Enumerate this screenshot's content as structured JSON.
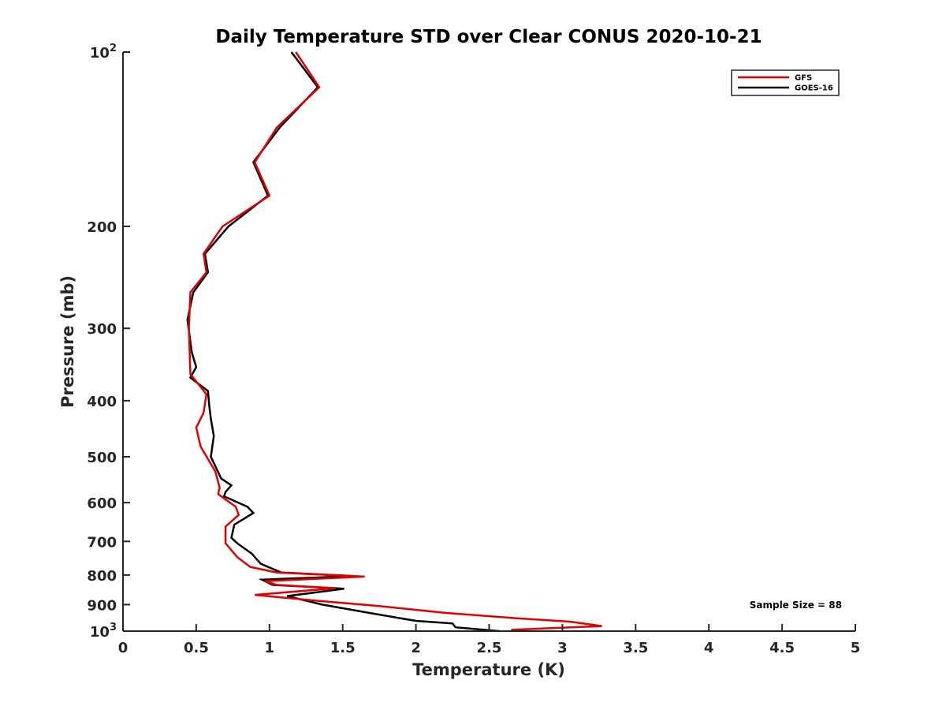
{
  "chart_data": {
    "type": "line",
    "title": "Daily Temperature STD over Clear CONUS 2020-10-21",
    "xlabel": "Temperature (K)",
    "ylabel": "Pressure (mb)",
    "xlim": [
      0,
      5
    ],
    "ylim": [
      1000,
      100
    ],
    "y_scale": "log-reversed",
    "grid": false,
    "legend_position": "top-right",
    "x_ticks": [
      "0",
      "0.5",
      "1",
      "1.5",
      "2",
      "2.5",
      "3",
      "3.5",
      "4",
      "4.5",
      "5"
    ],
    "y_ticks": [
      {
        "value": 100,
        "base": "10",
        "exp": "2"
      },
      {
        "value": 200,
        "label": "200"
      },
      {
        "value": 300,
        "label": "300"
      },
      {
        "value": 400,
        "label": "400"
      },
      {
        "value": 500,
        "label": "500"
      },
      {
        "value": 600,
        "label": "600"
      },
      {
        "value": 700,
        "label": "700"
      },
      {
        "value": 800,
        "label": "800"
      },
      {
        "value": 900,
        "label": "900"
      },
      {
        "value": 1000,
        "base": "10",
        "exp": "3"
      }
    ],
    "annotation": "Sample Size = 88",
    "series": [
      {
        "name": "GFS",
        "color": "#e00000",
        "points": [
          [
            1.18,
            100
          ],
          [
            1.34,
            115
          ],
          [
            1.05,
            135
          ],
          [
            0.9,
            155
          ],
          [
            1.0,
            177
          ],
          [
            0.68,
            200
          ],
          [
            0.55,
            223
          ],
          [
            0.57,
            240
          ],
          [
            0.46,
            260
          ],
          [
            0.45,
            300
          ],
          [
            0.46,
            360
          ],
          [
            0.57,
            390
          ],
          [
            0.55,
            420
          ],
          [
            0.5,
            445
          ],
          [
            0.53,
            480
          ],
          [
            0.63,
            530
          ],
          [
            0.66,
            565
          ],
          [
            0.65,
            580
          ],
          [
            0.77,
            610
          ],
          [
            0.79,
            630
          ],
          [
            0.7,
            660
          ],
          [
            0.7,
            705
          ],
          [
            0.78,
            745
          ],
          [
            0.87,
            775
          ],
          [
            1.05,
            792
          ],
          [
            1.65,
            805
          ],
          [
            0.97,
            820
          ],
          [
            1.05,
            832
          ],
          [
            1.45,
            843
          ],
          [
            1.28,
            850
          ],
          [
            0.9,
            866
          ],
          [
            1.3,
            885
          ],
          [
            1.75,
            905
          ],
          [
            2.2,
            930
          ],
          [
            2.68,
            950
          ],
          [
            3.05,
            963
          ],
          [
            3.27,
            980
          ],
          [
            2.65,
            995
          ]
        ]
      },
      {
        "name": "GOES-16",
        "color": "#000000",
        "points": [
          [
            1.15,
            100
          ],
          [
            1.33,
            115
          ],
          [
            1.07,
            135
          ],
          [
            0.89,
            155
          ],
          [
            0.99,
            177
          ],
          [
            0.72,
            200
          ],
          [
            0.56,
            223
          ],
          [
            0.58,
            240
          ],
          [
            0.48,
            260
          ],
          [
            0.44,
            290
          ],
          [
            0.47,
            330
          ],
          [
            0.5,
            350
          ],
          [
            0.46,
            365
          ],
          [
            0.58,
            385
          ],
          [
            0.59,
            410
          ],
          [
            0.6,
            430
          ],
          [
            0.62,
            460
          ],
          [
            0.6,
            500
          ],
          [
            0.67,
            545
          ],
          [
            0.74,
            560
          ],
          [
            0.7,
            575
          ],
          [
            0.69,
            585
          ],
          [
            0.85,
            610
          ],
          [
            0.89,
            625
          ],
          [
            0.76,
            655
          ],
          [
            0.74,
            690
          ],
          [
            0.78,
            705
          ],
          [
            0.88,
            735
          ],
          [
            0.94,
            765
          ],
          [
            1.08,
            792
          ],
          [
            1.57,
            803
          ],
          [
            0.95,
            815
          ],
          [
            1.02,
            832
          ],
          [
            1.51,
            845
          ],
          [
            1.12,
            870
          ],
          [
            1.36,
            900
          ],
          [
            1.68,
            930
          ],
          [
            2.0,
            960
          ],
          [
            2.25,
            970
          ],
          [
            2.27,
            985
          ],
          [
            2.57,
            1000
          ]
        ]
      }
    ]
  }
}
